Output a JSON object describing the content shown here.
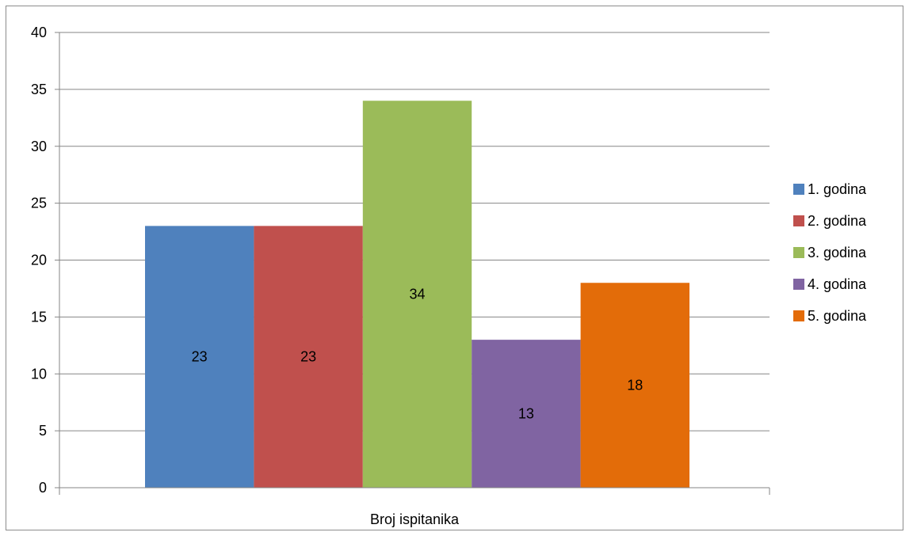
{
  "chart_data": {
    "type": "bar",
    "categories": [
      "Broj ispitanika"
    ],
    "series": [
      {
        "name": "1. godina",
        "values": [
          23
        ],
        "color": "#4F81BD"
      },
      {
        "name": "2. godina",
        "values": [
          23
        ],
        "color": "#C0504D"
      },
      {
        "name": "3. godina",
        "values": [
          34
        ],
        "color": "#9BBB59"
      },
      {
        "name": "4. godina",
        "values": [
          13
        ],
        "color": "#8064A2"
      },
      {
        "name": "5. godina",
        "values": [
          18
        ],
        "color": "#E36C09"
      }
    ],
    "title": "",
    "xlabel": "",
    "ylabel": "",
    "ylim": [
      0,
      40
    ],
    "yticks": [
      0,
      5,
      10,
      15,
      20,
      25,
      30,
      35,
      40
    ],
    "grid": true,
    "legend_position": "right",
    "data_labels": true
  }
}
